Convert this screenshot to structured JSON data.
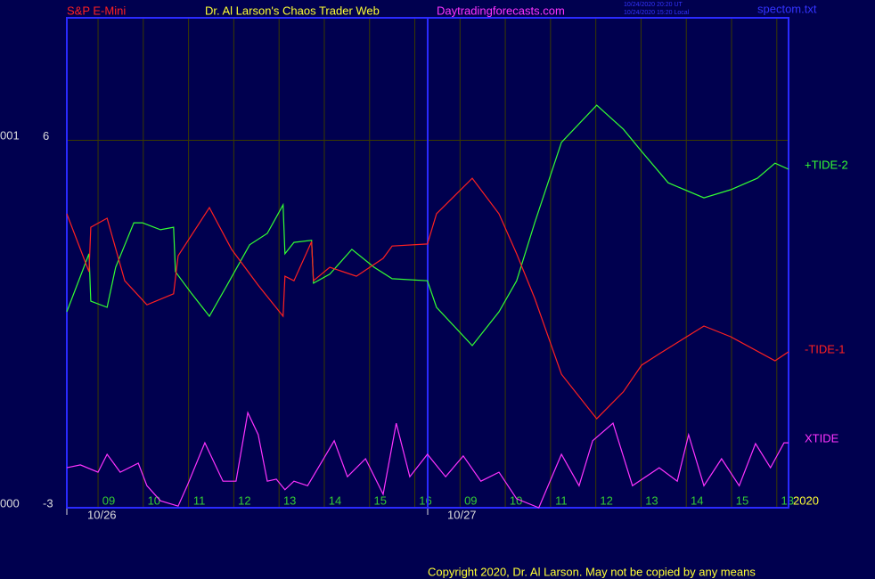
{
  "chart_data": {
    "type": "line",
    "symbol": "S&P E-Mini",
    "title": "Dr. Al Larson's Chaos Trader Web",
    "website": "Daytradingforecasts.com",
    "timestamps": [
      "10/24/2020 20:20 UT",
      "10/24/2020 15:20 Local"
    ],
    "file": "spectom.txt",
    "left_labels": [
      "001",
      "000"
    ],
    "dates": [
      "10/26",
      "10/27"
    ],
    "year": "2020",
    "copyright": "Copyright 2020, Dr. Al Larson. May not be copied by any means",
    "xlim": [
      -0.69,
      15.26
    ],
    "xticks": [
      {
        "value": 0,
        "label": "09"
      },
      {
        "value": 1,
        "label": "10"
      },
      {
        "value": 2,
        "label": "11"
      },
      {
        "value": 3,
        "label": "12"
      },
      {
        "value": 4,
        "label": "13"
      },
      {
        "value": 5,
        "label": "14"
      },
      {
        "value": 6,
        "label": "15"
      },
      {
        "value": 7,
        "label": "16"
      },
      {
        "value": 8,
        "label": "09"
      },
      {
        "value": 9,
        "label": "10"
      },
      {
        "value": 10,
        "label": "11"
      },
      {
        "value": 11,
        "label": "12"
      },
      {
        "value": 12,
        "label": "13"
      },
      {
        "value": 13,
        "label": "14"
      },
      {
        "value": 14,
        "label": "15"
      },
      {
        "value": 15,
        "label": "13"
      }
    ],
    "ylim": [
      -3,
      9
    ],
    "yticks": [
      6,
      -3
    ],
    "grid": true,
    "series": [
      {
        "name": "+TIDE-2",
        "color": "#33ff33",
        "x": [
          -0.69,
          -0.2,
          -0.16,
          0.2,
          0.39,
          0.79,
          0.98,
          1.38,
          1.67,
          1.71,
          2.07,
          2.46,
          2.85,
          3.35,
          3.74,
          4.09,
          4.13,
          4.33,
          4.72,
          4.76,
          5.12,
          5.61,
          6.1,
          6.5,
          7.28,
          7.48,
          8.27,
          8.86,
          9.25,
          9.65,
          10.24,
          11.02,
          11.61,
          12.01,
          12.6,
          13.39,
          13.98,
          14.57,
          14.96,
          15.26
        ],
        "values": [
          1.8,
          3.22,
          2.06,
          1.91,
          2.89,
          3.98,
          3.98,
          3.81,
          3.87,
          2.78,
          2.24,
          1.69,
          2.45,
          3.44,
          3.72,
          4.42,
          3.22,
          3.5,
          3.55,
          2.5,
          2.72,
          3.33,
          2.89,
          2.61,
          2.56,
          1.91,
          0.97,
          1.8,
          2.56,
          3.98,
          5.95,
          6.86,
          6.27,
          5.73,
          4.96,
          4.59,
          4.79,
          5.07,
          5.44,
          5.29
        ]
      },
      {
        "name": "-TIDE-1",
        "color": "#ff2020",
        "x": [
          -0.69,
          -0.2,
          -0.16,
          0.2,
          0.59,
          1.08,
          1.67,
          1.77,
          2.46,
          2.95,
          3.54,
          4.09,
          4.13,
          4.33,
          4.72,
          4.76,
          5.12,
          5.71,
          6.3,
          6.5,
          7.28,
          7.48,
          8.27,
          8.86,
          9.25,
          9.65,
          10.24,
          11.02,
          11.61,
          12.01,
          12.4,
          13.39,
          13.98,
          14.96,
          15.26
        ],
        "values": [
          4.2,
          2.78,
          3.87,
          4.09,
          2.56,
          1.97,
          2.24,
          3.17,
          4.35,
          3.33,
          2.45,
          1.69,
          2.67,
          2.56,
          3.52,
          2.56,
          2.89,
          2.67,
          3.11,
          3.41,
          3.46,
          4.2,
          5.07,
          4.2,
          3.22,
          2.13,
          0.27,
          -0.82,
          -0.16,
          0.49,
          0.77,
          1.45,
          1.19,
          0.6,
          0.82
        ]
      },
      {
        "name": "XTIDE",
        "color": "#ff33ff",
        "x": [
          -0.69,
          -0.39,
          0,
          0.2,
          0.49,
          0.89,
          1.08,
          1.38,
          1.77,
          1.97,
          2.36,
          2.76,
          3.05,
          3.31,
          3.54,
          3.74,
          3.94,
          4.13,
          4.33,
          4.63,
          5.22,
          5.51,
          5.91,
          6.3,
          6.59,
          6.89,
          7.28,
          7.68,
          8.07,
          8.46,
          8.86,
          9.25,
          9.74,
          10.24,
          10.63,
          10.93,
          11.38,
          11.81,
          12.4,
          12.8,
          13.05,
          13.39,
          13.78,
          14.17,
          14.53,
          14.86,
          15.16,
          15.26
        ],
        "values": [
          -2.02,
          -1.95,
          -2.13,
          -1.69,
          -2.13,
          -1.91,
          -2.46,
          -2.83,
          -2.96,
          -2.46,
          -1.41,
          -2.35,
          -2.35,
          -0.67,
          -1.21,
          -2.35,
          -2.3,
          -2.56,
          -2.35,
          -2.46,
          -1.36,
          -2.24,
          -1.8,
          -2.67,
          -0.93,
          -2.24,
          -1.69,
          -2.24,
          -1.73,
          -2.35,
          -2.13,
          -2.78,
          -3.0,
          -1.69,
          -2.46,
          -1.36,
          -0.93,
          -2.46,
          -2.02,
          -2.35,
          -1.21,
          -2.46,
          -1.8,
          -2.46,
          -1.43,
          -2.02,
          -1.41,
          -1.41
        ]
      }
    ]
  }
}
